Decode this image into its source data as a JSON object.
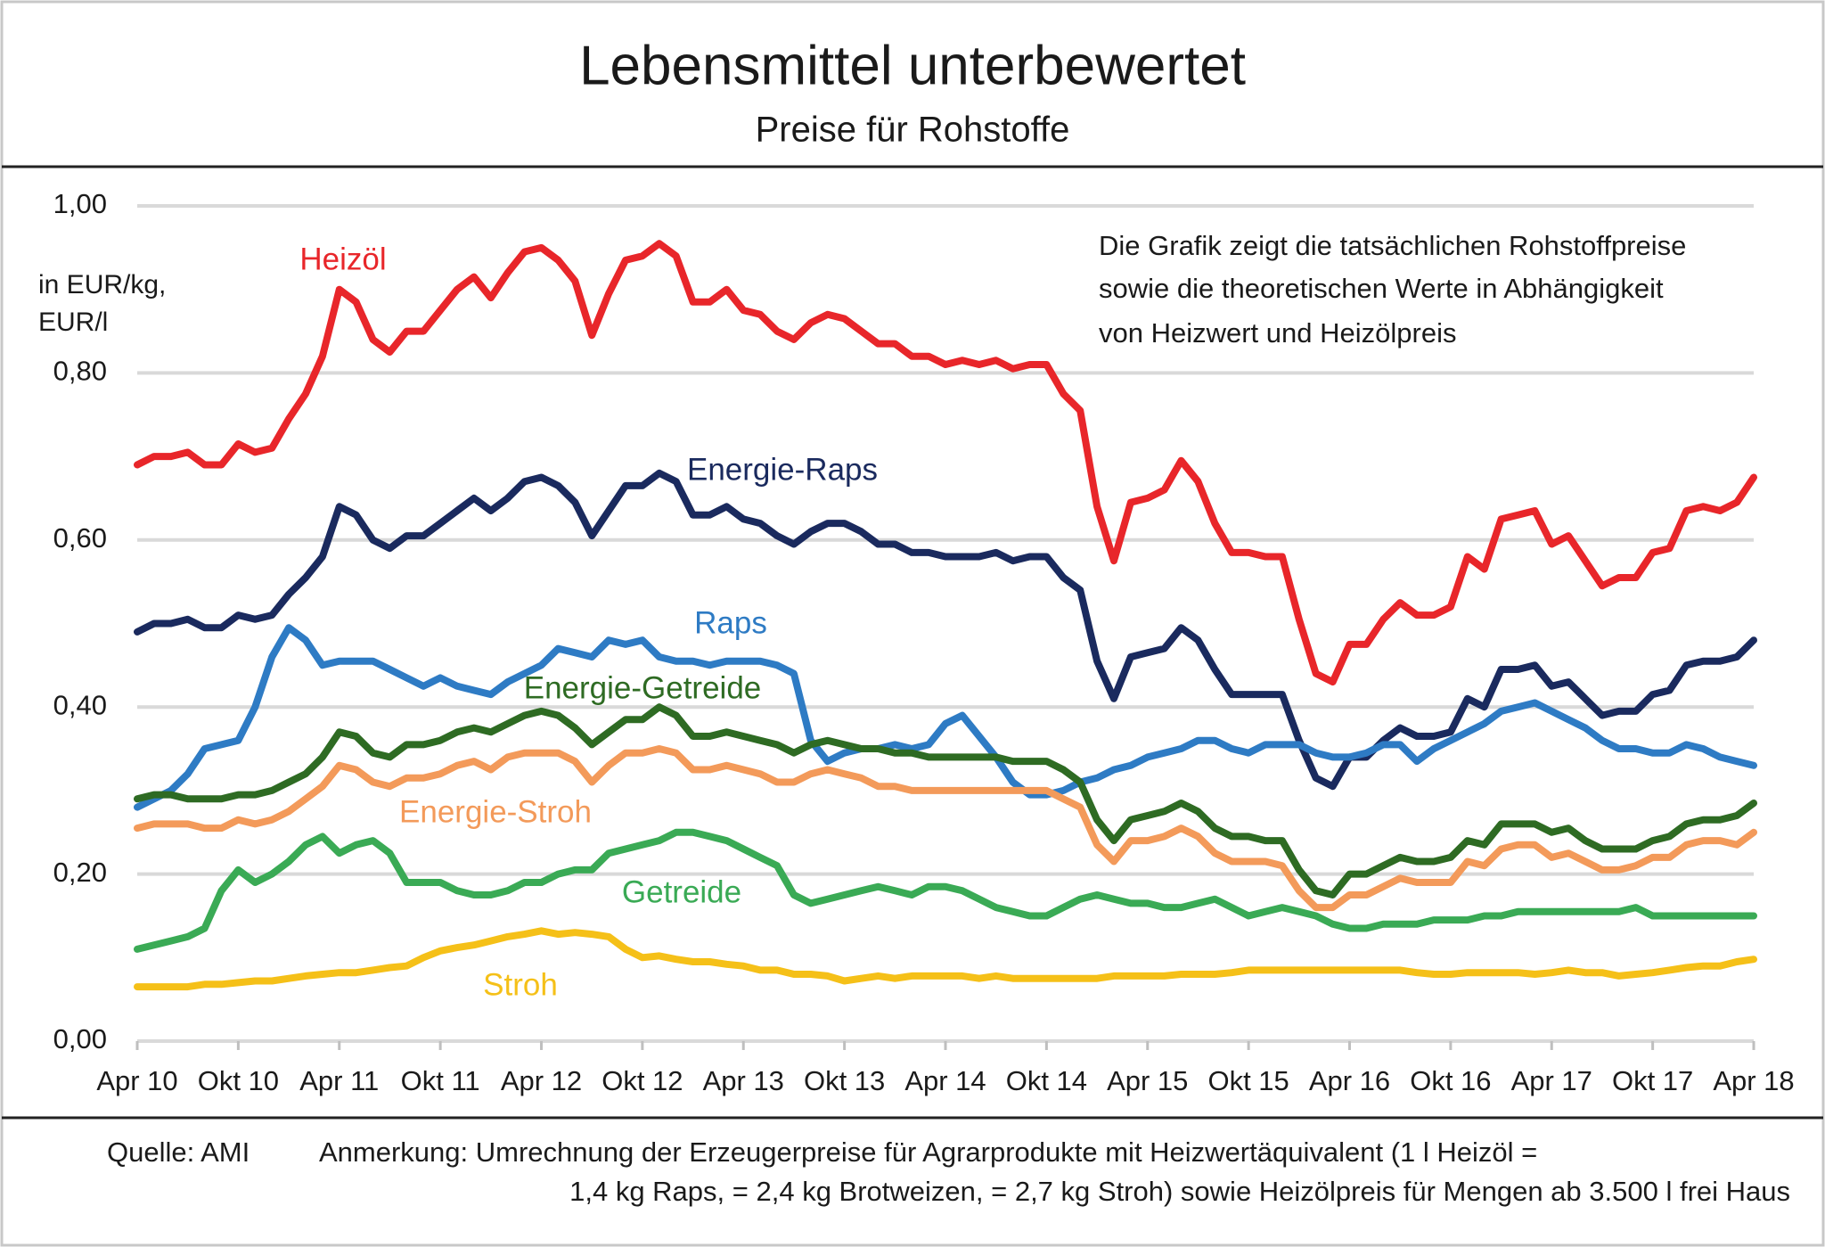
{
  "chart_data": {
    "type": "line",
    "title": "Lebensmittel unterbewertet",
    "subtitle": "Preise für Rohstoffe",
    "y_label": [
      "in EUR/kg,",
      "EUR/l"
    ],
    "annotation": [
      "Die Grafik zeigt die tatsächlichen Rohstoffpreise",
      "sowie die theoretischen Werte in Abhängigkeit",
      "von Heizwert und Heizölpreis"
    ],
    "source": "Quelle: AMI",
    "note": [
      "Anmerkung: Umrechnung der Erzeugerpreise für Agrarprodukte mit Heizwertäquivalent (1 l Heizöl =",
      "1,4 kg Raps, = 2,4 kg Brotweizen, = 2,7 kg Stroh) sowie Heizölpreis für Mengen ab 3.500 l frei Haus"
    ],
    "categories": [
      "Apr 10",
      null,
      null,
      null,
      null,
      null,
      "Okt 10",
      null,
      null,
      null,
      null,
      null,
      "Apr 11",
      null,
      null,
      null,
      null,
      null,
      "Okt 11",
      null,
      null,
      null,
      null,
      null,
      "Apr 12",
      null,
      null,
      null,
      null,
      null,
      "Okt 12",
      null,
      null,
      null,
      null,
      null,
      "Apr 13",
      null,
      null,
      null,
      null,
      null,
      "Okt 13",
      null,
      null,
      null,
      null,
      null,
      "Apr 14",
      null,
      null,
      null,
      null,
      null,
      "Okt 14",
      null,
      null,
      null,
      null,
      null,
      "Apr 15",
      null,
      null,
      null,
      null,
      null,
      "Okt 15",
      null,
      null,
      null,
      null,
      null,
      "Apr 16",
      null,
      null,
      null,
      null,
      null,
      "Okt 16",
      null,
      null,
      null,
      null,
      null,
      "Apr 17",
      null,
      null,
      null,
      null,
      null,
      "Okt 17",
      null,
      null,
      null,
      null,
      null,
      "Apr 18"
    ],
    "ylim": [
      0,
      1
    ],
    "yticks": [
      {
        "value": 0,
        "label": "0,00"
      },
      {
        "value": 0.2,
        "label": "0,20"
      },
      {
        "value": 0.4,
        "label": "0,40"
      },
      {
        "value": 0.6,
        "label": "0,60"
      },
      {
        "value": 0.8,
        "label": "0,80"
      },
      {
        "value": 1,
        "label": "1,00"
      }
    ],
    "grid": true,
    "series": [
      {
        "name": "Heizöl",
        "color": "#e8262a",
        "values": [
          0.69,
          0.7,
          0.7,
          0.705,
          0.69,
          0.69,
          0.715,
          0.705,
          0.71,
          0.745,
          0.775,
          0.82,
          0.9,
          0.885,
          0.84,
          0.825,
          0.85,
          0.85,
          0.875,
          0.9,
          0.915,
          0.89,
          0.92,
          0.945,
          0.95,
          0.935,
          0.91,
          0.845,
          0.895,
          0.935,
          0.94,
          0.955,
          0.94,
          0.885,
          0.885,
          0.9,
          0.875,
          0.87,
          0.85,
          0.84,
          0.86,
          0.87,
          0.865,
          0.85,
          0.835,
          0.835,
          0.82,
          0.82,
          0.81,
          0.815,
          0.81,
          0.815,
          0.805,
          0.81,
          0.81,
          0.775,
          0.755,
          0.64,
          0.575,
          0.645,
          0.65,
          0.66,
          0.695,
          0.67,
          0.62,
          0.585,
          0.585,
          0.58,
          0.58,
          0.505,
          0.44,
          0.43,
          0.475,
          0.475,
          0.505,
          0.525,
          0.51,
          0.51,
          0.52,
          0.58,
          0.565,
          0.625,
          0.63,
          0.635,
          0.595,
          0.605,
          0.575,
          0.545,
          0.555,
          0.555,
          0.585,
          0.59,
          0.635,
          0.64,
          0.635,
          0.645,
          0.675
        ]
      },
      {
        "name": "Energie-Raps",
        "color": "#1a2a5e",
        "values": [
          0.49,
          0.5,
          0.5,
          0.505,
          0.495,
          0.495,
          0.51,
          0.505,
          0.51,
          0.535,
          0.555,
          0.58,
          0.64,
          0.63,
          0.6,
          0.59,
          0.605,
          0.605,
          0.62,
          0.635,
          0.65,
          0.635,
          0.65,
          0.67,
          0.675,
          0.665,
          0.645,
          0.605,
          0.635,
          0.665,
          0.665,
          0.68,
          0.67,
          0.63,
          0.63,
          0.64,
          0.625,
          0.62,
          0.605,
          0.595,
          0.61,
          0.62,
          0.62,
          0.61,
          0.595,
          0.595,
          0.585,
          0.585,
          0.58,
          0.58,
          0.58,
          0.585,
          0.575,
          0.58,
          0.58,
          0.555,
          0.54,
          0.455,
          0.41,
          0.46,
          0.465,
          0.47,
          0.495,
          0.48,
          0.445,
          0.415,
          0.415,
          0.415,
          0.415,
          0.36,
          0.315,
          0.305,
          0.34,
          0.34,
          0.36,
          0.375,
          0.365,
          0.365,
          0.37,
          0.41,
          0.4,
          0.445,
          0.445,
          0.45,
          0.425,
          0.43,
          0.41,
          0.39,
          0.395,
          0.395,
          0.415,
          0.42,
          0.45,
          0.455,
          0.455,
          0.46,
          0.48
        ]
      },
      {
        "name": "Raps",
        "color": "#2e7bc4",
        "values": [
          0.28,
          0.29,
          0.3,
          0.32,
          0.35,
          0.355,
          0.36,
          0.4,
          0.46,
          0.495,
          0.48,
          0.45,
          0.455,
          0.455,
          0.455,
          0.445,
          0.435,
          0.425,
          0.435,
          0.425,
          0.42,
          0.415,
          0.43,
          0.44,
          0.45,
          0.47,
          0.465,
          0.46,
          0.48,
          0.475,
          0.48,
          0.46,
          0.455,
          0.455,
          0.45,
          0.455,
          0.455,
          0.455,
          0.45,
          0.44,
          0.36,
          0.335,
          0.345,
          0.35,
          0.35,
          0.355,
          0.35,
          0.355,
          0.38,
          0.39,
          0.365,
          0.34,
          0.31,
          0.295,
          0.295,
          0.3,
          0.31,
          0.315,
          0.325,
          0.33,
          0.34,
          0.345,
          0.35,
          0.36,
          0.36,
          0.35,
          0.345,
          0.355,
          0.355,
          0.355,
          0.345,
          0.34,
          0.34,
          0.345,
          0.355,
          0.355,
          0.335,
          0.35,
          0.36,
          0.37,
          0.38,
          0.395,
          0.4,
          0.405,
          0.395,
          0.385,
          0.375,
          0.36,
          0.35,
          0.35,
          0.345,
          0.345,
          0.355,
          0.35,
          0.34,
          0.335,
          0.33
        ]
      },
      {
        "name": "Energie-Getreide",
        "color": "#2e6b23",
        "values": [
          0.29,
          0.295,
          0.295,
          0.29,
          0.29,
          0.29,
          0.295,
          0.295,
          0.3,
          0.31,
          0.32,
          0.34,
          0.37,
          0.365,
          0.345,
          0.34,
          0.355,
          0.355,
          0.36,
          0.37,
          0.375,
          0.37,
          0.38,
          0.39,
          0.395,
          0.39,
          0.375,
          0.355,
          0.37,
          0.385,
          0.385,
          0.4,
          0.39,
          0.365,
          0.365,
          0.37,
          0.365,
          0.36,
          0.355,
          0.345,
          0.355,
          0.36,
          0.355,
          0.35,
          0.35,
          0.345,
          0.345,
          0.34,
          0.34,
          0.34,
          0.34,
          0.34,
          0.335,
          0.335,
          0.335,
          0.325,
          0.31,
          0.265,
          0.24,
          0.265,
          0.27,
          0.275,
          0.285,
          0.275,
          0.255,
          0.245,
          0.245,
          0.24,
          0.24,
          0.205,
          0.18,
          0.175,
          0.2,
          0.2,
          0.21,
          0.22,
          0.215,
          0.215,
          0.22,
          0.24,
          0.235,
          0.26,
          0.26,
          0.26,
          0.25,
          0.255,
          0.24,
          0.23,
          0.23,
          0.23,
          0.24,
          0.245,
          0.26,
          0.265,
          0.265,
          0.27,
          0.285
        ]
      },
      {
        "name": "Energie-Stroh",
        "color": "#f39a5a",
        "values": [
          0.255,
          0.26,
          0.26,
          0.26,
          0.255,
          0.255,
          0.265,
          0.26,
          0.265,
          0.275,
          0.29,
          0.305,
          0.33,
          0.325,
          0.31,
          0.305,
          0.315,
          0.315,
          0.32,
          0.33,
          0.335,
          0.325,
          0.34,
          0.345,
          0.345,
          0.345,
          0.335,
          0.31,
          0.33,
          0.345,
          0.345,
          0.35,
          0.345,
          0.325,
          0.325,
          0.33,
          0.325,
          0.32,
          0.31,
          0.31,
          0.32,
          0.325,
          0.32,
          0.315,
          0.305,
          0.305,
          0.3,
          0.3,
          0.3,
          0.3,
          0.3,
          0.3,
          0.3,
          0.3,
          0.3,
          0.29,
          0.28,
          0.235,
          0.215,
          0.24,
          0.24,
          0.245,
          0.255,
          0.245,
          0.225,
          0.215,
          0.215,
          0.215,
          0.21,
          0.18,
          0.16,
          0.16,
          0.175,
          0.175,
          0.185,
          0.195,
          0.19,
          0.19,
          0.19,
          0.215,
          0.21,
          0.23,
          0.235,
          0.235,
          0.22,
          0.225,
          0.215,
          0.205,
          0.205,
          0.21,
          0.22,
          0.22,
          0.235,
          0.24,
          0.24,
          0.235,
          0.25
        ]
      },
      {
        "name": "Getreide",
        "color": "#3aaa55",
        "values": [
          0.11,
          0.115,
          0.12,
          0.125,
          0.135,
          0.18,
          0.205,
          0.19,
          0.2,
          0.215,
          0.235,
          0.245,
          0.225,
          0.235,
          0.24,
          0.225,
          0.19,
          0.19,
          0.19,
          0.18,
          0.175,
          0.175,
          0.18,
          0.19,
          0.19,
          0.2,
          0.205,
          0.205,
          0.225,
          0.23,
          0.235,
          0.24,
          0.25,
          0.25,
          0.245,
          0.24,
          0.23,
          0.22,
          0.21,
          0.175,
          0.165,
          0.17,
          0.175,
          0.18,
          0.185,
          0.18,
          0.175,
          0.185,
          0.185,
          0.18,
          0.17,
          0.16,
          0.155,
          0.15,
          0.15,
          0.16,
          0.17,
          0.175,
          0.17,
          0.165,
          0.165,
          0.16,
          0.16,
          0.165,
          0.17,
          0.16,
          0.15,
          0.155,
          0.16,
          0.155,
          0.15,
          0.14,
          0.135,
          0.135,
          0.14,
          0.14,
          0.14,
          0.145,
          0.145,
          0.145,
          0.15,
          0.15,
          0.155,
          0.155,
          0.155,
          0.155,
          0.155,
          0.155,
          0.155,
          0.16,
          0.15,
          0.15,
          0.15,
          0.15,
          0.15,
          0.15,
          0.15
        ]
      },
      {
        "name": "Stroh",
        "color": "#f5c018",
        "values": [
          0.065,
          0.065,
          0.065,
          0.065,
          0.068,
          0.068,
          0.07,
          0.072,
          0.072,
          0.075,
          0.078,
          0.08,
          0.082,
          0.082,
          0.085,
          0.088,
          0.09,
          0.1,
          0.108,
          0.112,
          0.115,
          0.12,
          0.125,
          0.128,
          0.132,
          0.128,
          0.13,
          0.128,
          0.125,
          0.11,
          0.1,
          0.102,
          0.098,
          0.095,
          0.095,
          0.092,
          0.09,
          0.085,
          0.085,
          0.08,
          0.08,
          0.078,
          0.072,
          0.075,
          0.078,
          0.075,
          0.078,
          0.078,
          0.078,
          0.078,
          0.075,
          0.078,
          0.075,
          0.075,
          0.075,
          0.075,
          0.075,
          0.075,
          0.078,
          0.078,
          0.078,
          0.078,
          0.08,
          0.08,
          0.08,
          0.082,
          0.085,
          0.085,
          0.085,
          0.085,
          0.085,
          0.085,
          0.085,
          0.085,
          0.085,
          0.085,
          0.082,
          0.08,
          0.08,
          0.082,
          0.082,
          0.082,
          0.082,
          0.08,
          0.082,
          0.085,
          0.082,
          0.082,
          0.078,
          0.08,
          0.082,
          0.085,
          0.088,
          0.09,
          0.09,
          0.095,
          0.098
        ]
      }
    ]
  }
}
